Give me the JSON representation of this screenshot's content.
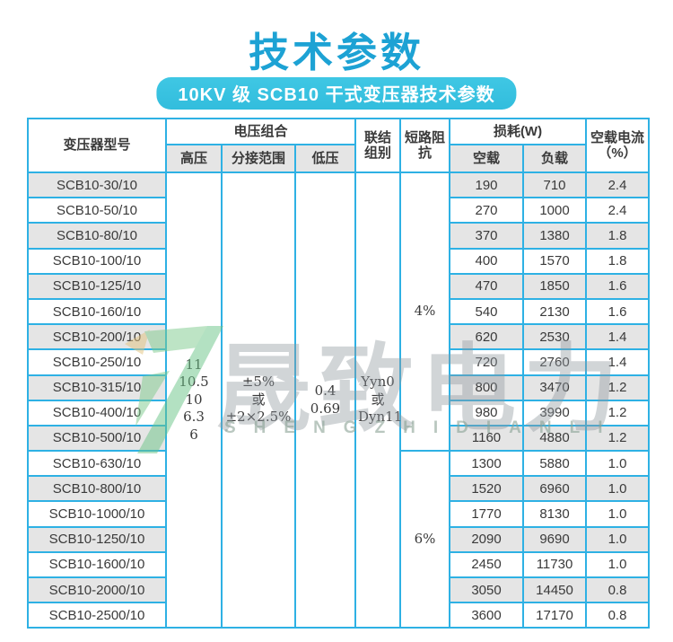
{
  "page": {
    "title": "技术参数",
    "subtitle": "10KV 级 SCB10 干式变压器技术参数"
  },
  "colors": {
    "accent": "#2eb1e4",
    "title_blue": "#1da2d4",
    "pill_bg": "#35c0df",
    "row_gray": "#e5e5e5"
  },
  "table": {
    "headers": {
      "model": "变压器型号",
      "voltage_group": "电压组合",
      "hv": "高压",
      "tap_range": "分接范围",
      "lv": "低压",
      "connection": "联结组别",
      "impedance": "短路阻抗",
      "loss": "损耗(W)",
      "no_load_loss": "空载",
      "load_loss": "负载",
      "no_load_current": "空载电流（%）"
    },
    "merged": {
      "hv_values": [
        "11",
        "10.5",
        "10",
        "6.3",
        "6"
      ],
      "tap_range_values": [
        "±5%",
        "或",
        "±2×2.5%"
      ],
      "lv_values": [
        "0.4",
        "0.69"
      ],
      "connection_values": [
        "Yyn0",
        "或",
        "Dyn11"
      ],
      "impedance_groups": [
        {
          "value": "4%",
          "row_start": 0,
          "row_span": 11
        },
        {
          "value": "6%",
          "row_start": 11,
          "row_span": 7
        }
      ]
    },
    "rows": [
      {
        "model": "SCB10-30/10",
        "no_load": "190",
        "load": "710",
        "current": "2.4"
      },
      {
        "model": "SCB10-50/10",
        "no_load": "270",
        "load": "1000",
        "current": "2.4"
      },
      {
        "model": "SCB10-80/10",
        "no_load": "370",
        "load": "1380",
        "current": "1.8"
      },
      {
        "model": "SCB10-100/10",
        "no_load": "400",
        "load": "1570",
        "current": "1.8"
      },
      {
        "model": "SCB10-125/10",
        "no_load": "470",
        "load": "1850",
        "current": "1.6"
      },
      {
        "model": "SCB10-160/10",
        "no_load": "540",
        "load": "2130",
        "current": "1.6"
      },
      {
        "model": "SCB10-200/10",
        "no_load": "620",
        "load": "2530",
        "current": "1.4"
      },
      {
        "model": "SCB10-250/10",
        "no_load": "720",
        "load": "2760",
        "current": "1.4"
      },
      {
        "model": "SCB10-315/10",
        "no_load": "800",
        "load": "3470",
        "current": "1.2"
      },
      {
        "model": "SCB10-400/10",
        "no_load": "980",
        "load": "3990",
        "current": "1.2"
      },
      {
        "model": "SCB10-500/10",
        "no_load": "1160",
        "load": "4880",
        "current": "1.2"
      },
      {
        "model": "SCB10-630/10",
        "no_load": "1300",
        "load": "5880",
        "current": "1.0"
      },
      {
        "model": "SCB10-800/10",
        "no_load": "1520",
        "load": "6960",
        "current": "1.0"
      },
      {
        "model": "SCB10-1000/10",
        "no_load": "1770",
        "load": "8130",
        "current": "1.0"
      },
      {
        "model": "SCB10-1250/10",
        "no_load": "2090",
        "load": "9690",
        "current": "1.0"
      },
      {
        "model": "SCB10-1600/10",
        "no_load": "2450",
        "load": "11730",
        "current": "1.0"
      },
      {
        "model": "SCB10-2000/10",
        "no_load": "3050",
        "load": "14450",
        "current": "0.8"
      },
      {
        "model": "SCB10-2500/10",
        "no_load": "3600",
        "load": "17170",
        "current": "0.8"
      }
    ]
  },
  "watermark": {
    "text_cn": "晟致电力",
    "text_en": "SHENGZHIDIANLI"
  }
}
